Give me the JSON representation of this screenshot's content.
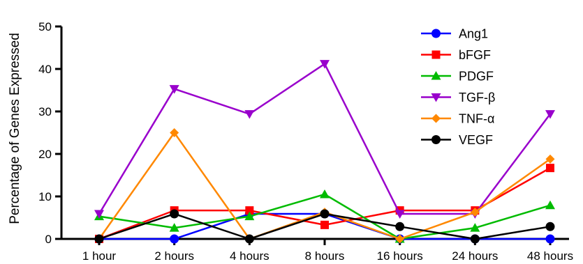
{
  "chart_data": {
    "type": "line",
    "title": "",
    "xlabel": "",
    "ylabel": "Percentage of Genes Expressed",
    "categories": [
      "1 hour",
      "2 hours",
      "4 hours",
      "8 hours",
      "16 hours",
      "24 hours",
      "48 hours"
    ],
    "ylim": [
      0,
      50
    ],
    "yticks": [
      0,
      10,
      20,
      30,
      40,
      50
    ],
    "grid": false,
    "legend_position": "top-right",
    "series": [
      {
        "name": "Ang1",
        "color": "#0000ff",
        "marker": "circle",
        "values": [
          0,
          0,
          5.9,
          5.9,
          0,
          0,
          0
        ]
      },
      {
        "name": "bFGF",
        "color": "#ff0000",
        "marker": "square",
        "values": [
          0,
          6.7,
          6.7,
          3.3,
          6.7,
          6.7,
          16.7
        ]
      },
      {
        "name": "PDGF",
        "color": "#00bb00",
        "marker": "triangle-up",
        "values": [
          5.3,
          2.6,
          5.3,
          10.5,
          0,
          2.6,
          7.9
        ]
      },
      {
        "name": "TGF-β",
        "color": "#9900cc",
        "marker": "triangle-down",
        "values": [
          5.9,
          35.3,
          29.4,
          41.2,
          5.9,
          5.9,
          29.4
        ]
      },
      {
        "name": "TNF-α",
        "color": "#ff8800",
        "marker": "diamond",
        "values": [
          0,
          25,
          0,
          6.3,
          0,
          6.3,
          18.8
        ]
      },
      {
        "name": "VEGF",
        "color": "#000000",
        "marker": "circle",
        "values": [
          0,
          5.9,
          0,
          5.9,
          2.9,
          0,
          2.9
        ]
      }
    ]
  }
}
